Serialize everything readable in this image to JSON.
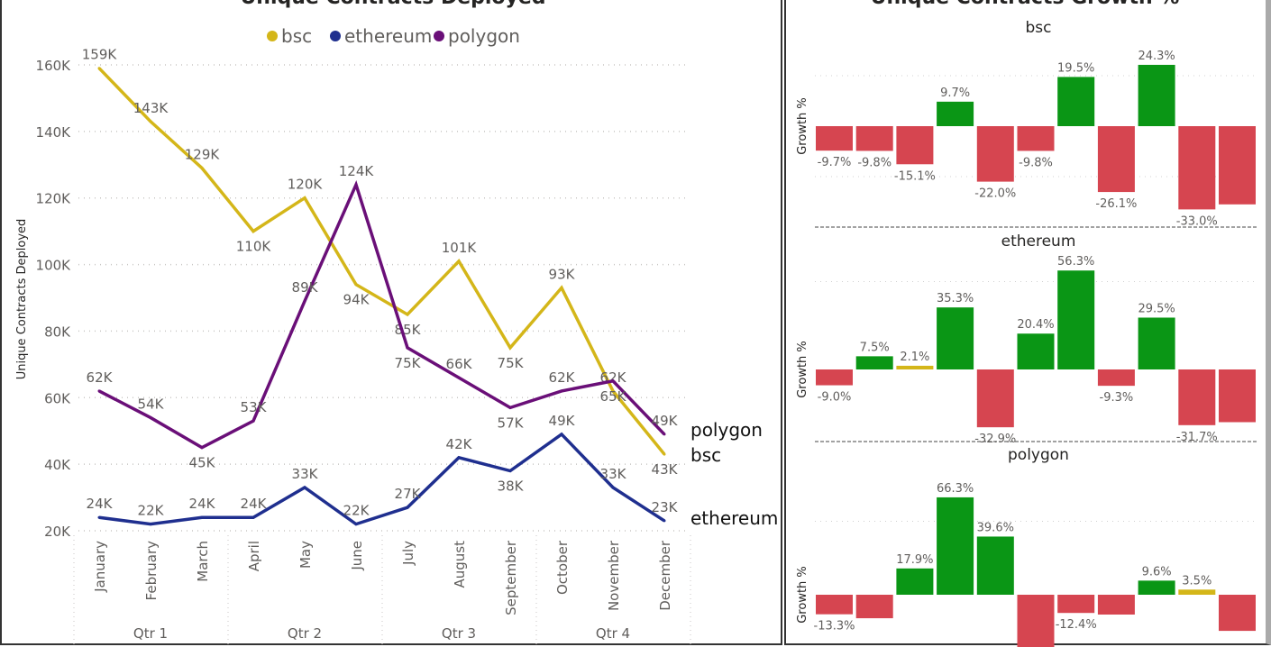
{
  "chart_data": [
    {
      "type": "line",
      "title": "Unique Contracts Deployed",
      "ylabel": "Unique Contracts Deployed",
      "xlabel": "",
      "ylim": [
        20000,
        160000
      ],
      "yticks": [
        "20K",
        "40K",
        "60K",
        "80K",
        "100K",
        "120K",
        "140K",
        "160K"
      ],
      "grid": true,
      "legend_position": "top",
      "categories": [
        "January",
        "February",
        "March",
        "April",
        "May",
        "June",
        "July",
        "August",
        "September",
        "October",
        "November",
        "December"
      ],
      "groups": [
        {
          "label": "Qtr 1",
          "span": 3
        },
        {
          "label": "Qtr 2",
          "span": 3
        },
        {
          "label": "Qtr 3",
          "span": 3
        },
        {
          "label": "Qtr 4",
          "span": 3
        }
      ],
      "series": [
        {
          "name": "bsc",
          "color": "#d4b619",
          "values": [
            159000,
            143000,
            129000,
            110000,
            120000,
            94000,
            85000,
            101000,
            75000,
            93000,
            62000,
            43000
          ],
          "labels": [
            "159K",
            "143K",
            "129K",
            "110K",
            "120K",
            "94K",
            "85K",
            "101K",
            "75K",
            "93K",
            "62K",
            "43K"
          ]
        },
        {
          "name": "ethereum",
          "color": "#1f2f8f",
          "values": [
            24000,
            22000,
            24000,
            24000,
            33000,
            22000,
            27000,
            42000,
            38000,
            49000,
            33000,
            23000
          ],
          "labels": [
            "24K",
            "22K",
            "24K",
            "24K",
            "33K",
            "22K",
            "27K",
            "42K",
            "38K",
            "49K",
            "33K",
            "23K"
          ]
        },
        {
          "name": "polygon",
          "color": "#6a0f78",
          "values": [
            62000,
            54000,
            45000,
            53000,
            89000,
            124000,
            75000,
            66000,
            57000,
            62000,
            65000,
            49000
          ],
          "labels": [
            "62K",
            "54K",
            "45K",
            "53K",
            "89K",
            "124K",
            "75K",
            "66K",
            "57K",
            "62K",
            "65K",
            "49K"
          ]
        }
      ]
    },
    {
      "type": "bar",
      "title": "Unique Contracts Growth %",
      "ylabel": "Growth %",
      "grid": true,
      "colors": {
        "positive": "#0a9615",
        "negative": "#d64550",
        "small": "#d4b619"
      },
      "panels": [
        {
          "name": "bsc",
          "values": [
            -9.7,
            -9.8,
            -15.1,
            9.7,
            -22.0,
            -9.8,
            19.5,
            -26.1,
            24.3,
            -33.0,
            -31.0
          ],
          "labels": [
            "-9.7%",
            "-9.8%",
            "-15.1%",
            "9.7%",
            "-22.0%",
            "-9.8%",
            "19.5%",
            "-26.1%",
            "24.3%",
            "-33.0%",
            ""
          ]
        },
        {
          "name": "ethereum",
          "values": [
            -9.0,
            7.5,
            2.1,
            35.3,
            -32.9,
            20.4,
            56.3,
            -9.3,
            29.5,
            -31.7,
            -30.0
          ],
          "labels": [
            "-9.0%",
            "7.5%",
            "2.1%",
            "35.3%",
            "-32.9%",
            "20.4%",
            "56.3%",
            "-9.3%",
            "29.5%",
            "-31.7%",
            ""
          ]
        },
        {
          "name": "polygon",
          "values": [
            -13.3,
            -16.0,
            17.9,
            66.3,
            39.6,
            -42.0,
            -12.4,
            -13.5,
            9.6,
            3.5,
            -24.6
          ],
          "labels": [
            "-13.3%",
            "",
            "17.9%",
            "66.3%",
            "39.6%",
            "",
            "-12.4%",
            "",
            "9.6%",
            "3.5%",
            ""
          ]
        }
      ]
    }
  ]
}
